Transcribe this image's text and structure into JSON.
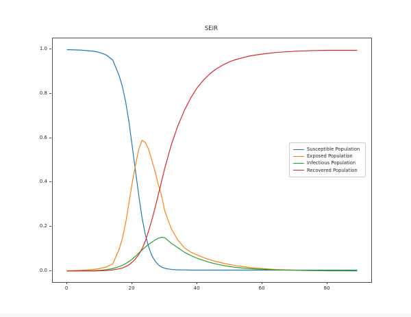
{
  "figure": {
    "title": "SEIR",
    "background_color": "#ffffff",
    "text_color": "#262626",
    "spine_color": "#4d4d4d"
  },
  "axes": {
    "x_tick_labels": [
      "0",
      "20",
      "40",
      "60",
      "80"
    ],
    "x_tick_values": [
      0,
      20,
      40,
      60,
      80
    ],
    "y_tick_labels": [
      "0.0",
      "0.2",
      "0.4",
      "0.6",
      "0.8",
      "1.0"
    ],
    "y_tick_values": [
      0.0,
      0.2,
      0.4,
      0.6,
      0.8,
      1.0
    ]
  },
  "legend": {
    "position": "center right",
    "items": [
      {
        "label": "Susceptible Population",
        "color": "#1f77b4"
      },
      {
        "label": "Exposed Population",
        "color": "#ff7f0e"
      },
      {
        "label": "Infectious Population",
        "color": "#2ca02c"
      },
      {
        "label": "Recovered Population",
        "color": "#d62728"
      }
    ]
  },
  "chart_data": {
    "type": "line",
    "title": "SEIR",
    "xlabel": "",
    "ylabel": "",
    "xlim": [
      -4.45,
      93.45
    ],
    "ylim": [
      -0.05,
      1.05
    ],
    "grid": false,
    "legend_position": "center right",
    "x": [
      0,
      4,
      8,
      10,
      12,
      14,
      16,
      17,
      18,
      19,
      20,
      21,
      22,
      23,
      24,
      25,
      26,
      27,
      28,
      29,
      30,
      32,
      34,
      36,
      38,
      40,
      42,
      44,
      46,
      48,
      50,
      52,
      54,
      56,
      58,
      60,
      64,
      68,
      72,
      76,
      80,
      84,
      89
    ],
    "series": [
      {
        "name": "Susceptible Population",
        "color": "#1f77b4",
        "values": [
          0.999,
          0.997,
          0.992,
          0.986,
          0.975,
          0.952,
          0.88,
          0.83,
          0.76,
          0.67,
          0.56,
          0.45,
          0.34,
          0.24,
          0.165,
          0.11,
          0.07,
          0.045,
          0.028,
          0.018,
          0.012,
          0.007,
          0.005,
          0.005,
          0.004,
          0.004,
          0.004,
          0.004,
          0.004,
          0.004,
          0.004,
          0.004,
          0.004,
          0.004,
          0.004,
          0.004,
          0.004,
          0.004,
          0.004,
          0.004,
          0.004,
          0.004,
          0.004
        ]
      },
      {
        "name": "Exposed Population",
        "color": "#ff7f0e",
        "values": [
          0.001,
          0.003,
          0.007,
          0.011,
          0.018,
          0.032,
          0.1,
          0.15,
          0.22,
          0.31,
          0.4,
          0.48,
          0.55,
          0.59,
          0.58,
          0.55,
          0.5,
          0.45,
          0.39,
          0.34,
          0.27,
          0.19,
          0.14,
          0.105,
          0.085,
          0.072,
          0.06,
          0.05,
          0.042,
          0.035,
          0.029,
          0.024,
          0.02,
          0.016,
          0.013,
          0.011,
          0.007,
          0.005,
          0.003,
          0.002,
          0.001,
          0.001,
          0.0
        ]
      },
      {
        "name": "Infectious Population",
        "color": "#2ca02c",
        "values": [
          0.0,
          0.001,
          0.002,
          0.003,
          0.006,
          0.011,
          0.02,
          0.026,
          0.034,
          0.043,
          0.054,
          0.067,
          0.081,
          0.095,
          0.108,
          0.12,
          0.13,
          0.14,
          0.148,
          0.152,
          0.15,
          0.125,
          0.105,
          0.085,
          0.07,
          0.057,
          0.047,
          0.038,
          0.031,
          0.025,
          0.02,
          0.016,
          0.013,
          0.011,
          0.009,
          0.008,
          0.005,
          0.004,
          0.003,
          0.002,
          0.001,
          0.001,
          0.001
        ]
      },
      {
        "name": "Recovered Population",
        "color": "#d62728",
        "values": [
          0.0,
          0.0,
          0.0,
          0.001,
          0.002,
          0.005,
          0.01,
          0.014,
          0.02,
          0.028,
          0.04,
          0.055,
          0.075,
          0.1,
          0.135,
          0.18,
          0.23,
          0.285,
          0.345,
          0.405,
          0.465,
          0.57,
          0.655,
          0.725,
          0.782,
          0.828,
          0.864,
          0.892,
          0.914,
          0.931,
          0.945,
          0.955,
          0.963,
          0.97,
          0.975,
          0.979,
          0.986,
          0.99,
          0.993,
          0.995,
          0.996,
          0.996,
          0.996
        ]
      }
    ]
  }
}
